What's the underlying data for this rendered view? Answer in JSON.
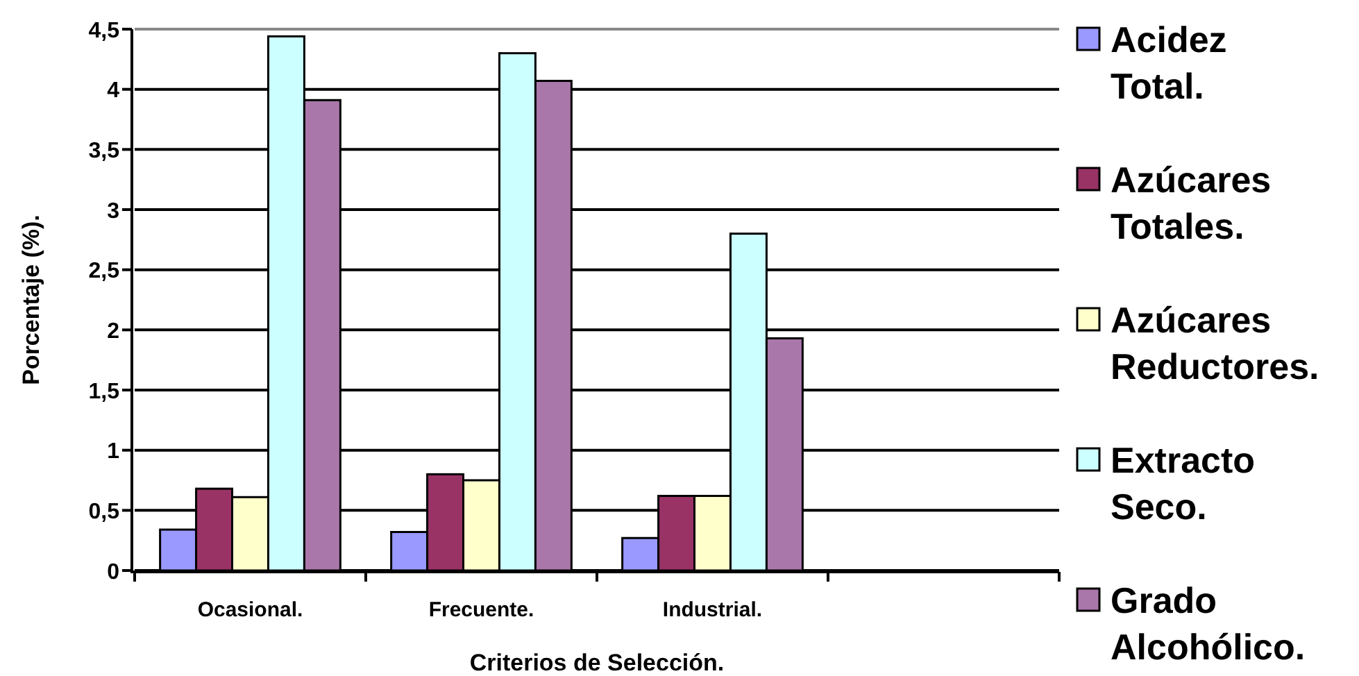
{
  "chart_data": {
    "type": "bar",
    "xlabel": "Criterios de Selección.",
    "ylabel": "Porcentaje (%).",
    "categories": [
      "Ocasional.",
      "Frecuente.",
      "Industrial.",
      null
    ],
    "series": [
      {
        "name": "Acidez Total.",
        "color": "#9999ff",
        "values": [
          0.34,
          0.32,
          0.27,
          null
        ]
      },
      {
        "name": "Azúcares Totales.",
        "color": "#993366",
        "values": [
          0.68,
          0.8,
          0.62,
          null
        ]
      },
      {
        "name": "Azúcares Reductores.",
        "color": "#ffffcc",
        "values": [
          0.61,
          0.75,
          0.62,
          null
        ]
      },
      {
        "name": "Extracto Seco.",
        "color": "#ccffff",
        "values": [
          4.44,
          4.3,
          2.8,
          null
        ]
      },
      {
        "name": "Grado Alcohólico.",
        "color": "#aa77aa",
        "values": [
          3.91,
          4.07,
          1.93,
          null
        ]
      }
    ],
    "ylim": [
      0,
      4.5
    ],
    "yticks": [
      0,
      {
        "value": 0.5,
        "label": "0,5"
      },
      1,
      {
        "value": 1.5,
        "label": "1,5"
      },
      2,
      {
        "value": 2.5,
        "label": "2,5"
      },
      3,
      {
        "value": 3.5,
        "label": "3,5"
      },
      4,
      {
        "value": 4.5,
        "label": "4,5"
      }
    ],
    "grid": "y",
    "legend": "right"
  }
}
